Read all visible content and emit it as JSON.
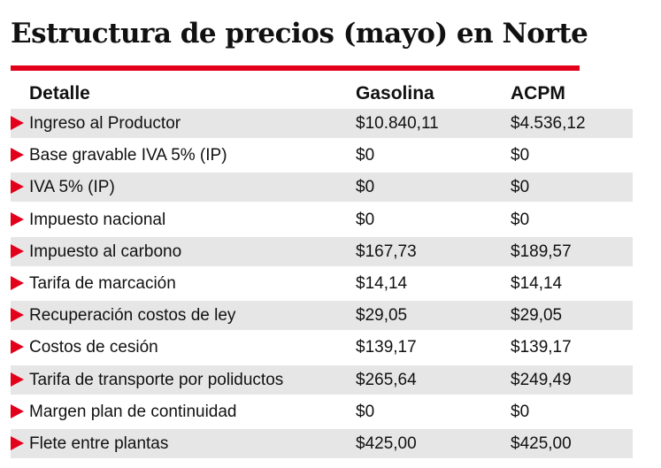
{
  "title": "Estructura de precios (mayo) en Norte",
  "table": {
    "headers": [
      "Detalle",
      "Gasolina",
      "ACPM"
    ],
    "rows": [
      [
        "Ingreso al Productor",
        "$10.840,11",
        "$4.536,12"
      ],
      [
        "Base gravable IVA 5% (IP)",
        "$0",
        "$0"
      ],
      [
        "IVA 5% (IP)",
        "$0",
        "$0"
      ],
      [
        "Impuesto nacional",
        "$0",
        "$0"
      ],
      [
        "Impuesto al carbono",
        "$167,73",
        "$189,57"
      ],
      [
        "Tarifa de marcación",
        "$14,14",
        "$14,14"
      ],
      [
        "Recuperación costos de ley",
        "$29,05",
        "$29,05"
      ],
      [
        "Costos de cesión",
        "$139,17",
        "$139,17"
      ],
      [
        "Tarifa de transporte por poliductos",
        "$265,64",
        "$249,49"
      ],
      [
        "Margen plan de continuidad",
        "$0",
        "$0"
      ],
      [
        "Flete entre plantas",
        "$425,00",
        "$425,00"
      ]
    ]
  }
}
